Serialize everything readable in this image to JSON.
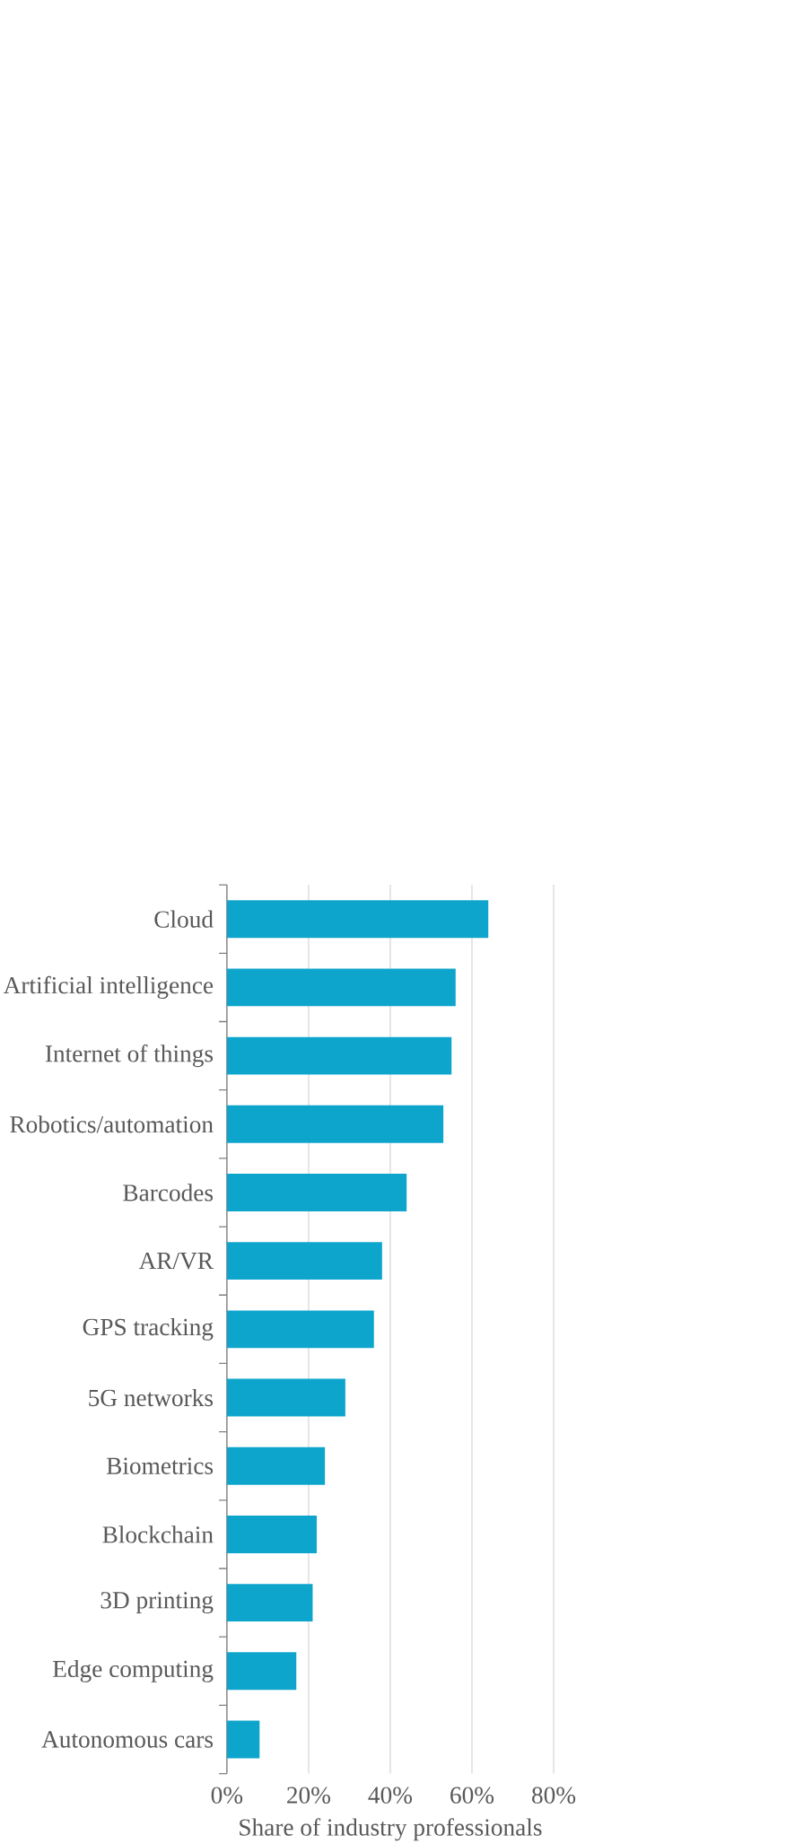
{
  "chart_data": {
    "type": "bar",
    "orientation": "horizontal",
    "xlabel": "Share of industry professionals",
    "categories": [
      "Cloud",
      "Artificial intelligence",
      "Internet of things",
      "Robotics/automation",
      "Barcodes",
      "AR/VR",
      "GPS tracking",
      "5G networks",
      "Biometrics",
      "Blockchain",
      "3D printing",
      "Edge computing",
      "Autonomous cars"
    ],
    "values": [
      64,
      56,
      55,
      53,
      44,
      38,
      36,
      29,
      24,
      22,
      21,
      17,
      8
    ],
    "color": "#0ea5cc",
    "xlim": [
      0,
      80
    ],
    "xticks": [
      {
        "value": 0,
        "label": "0%"
      },
      {
        "value": 20,
        "label": "20%"
      },
      {
        "value": 40,
        "label": "40%"
      },
      {
        "value": 60,
        "label": "60%"
      },
      {
        "value": 80,
        "label": "80%"
      }
    ],
    "grid": "x"
  }
}
